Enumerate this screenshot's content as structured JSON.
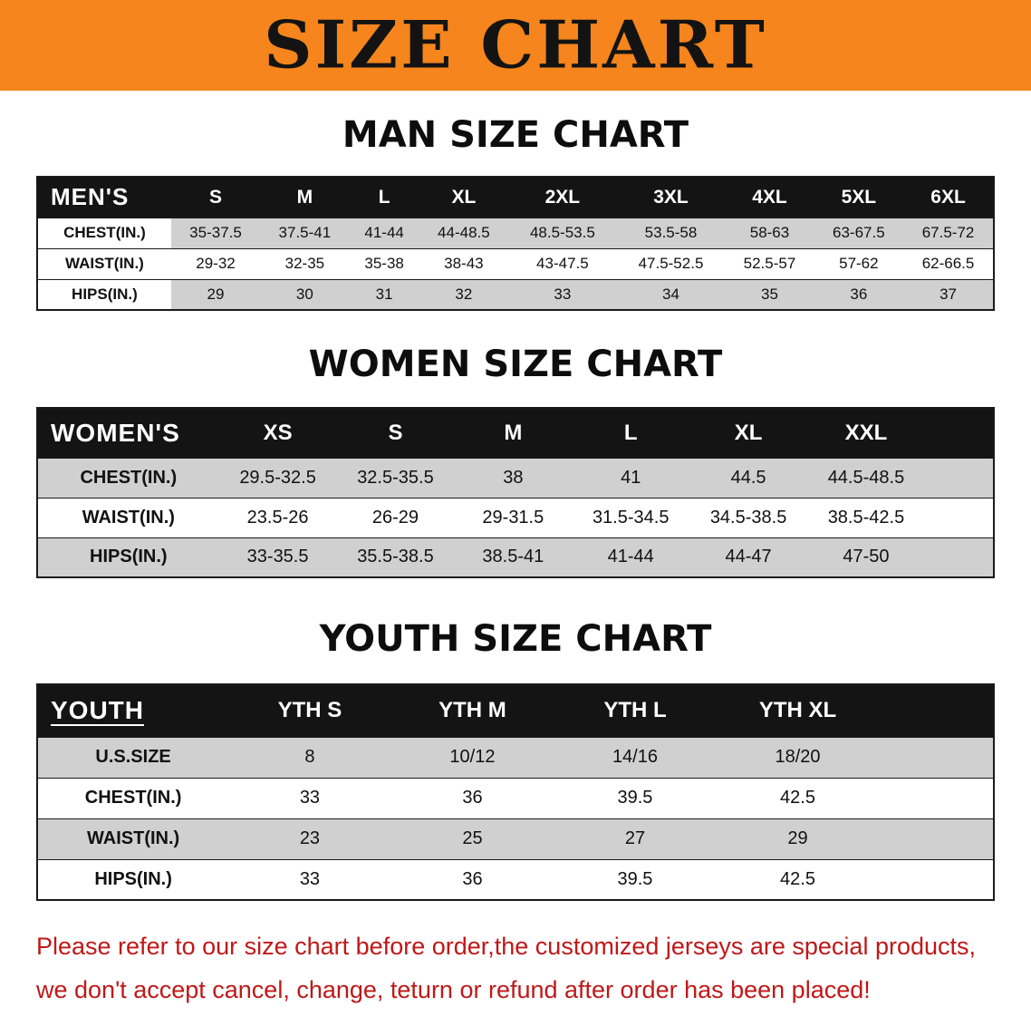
{
  "banner": {
    "title": "SIZE CHART"
  },
  "colors": {
    "banner_bg": "#F5851C",
    "header_bg": "#141414",
    "row_stripe": "#D0D0D0",
    "disclaimer_red": "#C01818",
    "text_black": "#111111"
  },
  "sections": {
    "men": {
      "heading": "MAN SIZE CHART"
    },
    "women": {
      "heading": "WOMEN SIZE CHART"
    },
    "youth": {
      "heading": "YOUTH SIZE CHART"
    }
  },
  "tables": {
    "men": {
      "title": "MEN'S",
      "sizes": [
        "S",
        "M",
        "L",
        "XL",
        "2XL",
        "3XL",
        "4XL",
        "5XL",
        "6XL"
      ],
      "rows": [
        {
          "label": "CHEST(IN.)",
          "values": [
            "35-37.5",
            "37.5-41",
            "41-44",
            "44-48.5",
            "48.5-53.5",
            "53.5-58",
            "58-63",
            "63-67.5",
            "67.5-72"
          ]
        },
        {
          "label": "WAIST(IN.)",
          "values": [
            "29-32",
            "32-35",
            "35-38",
            "38-43",
            "43-47.5",
            "47.5-52.5",
            "52.5-57",
            "57-62",
            "62-66.5"
          ]
        },
        {
          "label": "HIPS(IN.)",
          "values": [
            "29",
            "30",
            "31",
            "32",
            "33",
            "34",
            "35",
            "36",
            "37"
          ]
        }
      ]
    },
    "women": {
      "title": "WOMEN'S",
      "sizes": [
        "XS",
        "S",
        "M",
        "L",
        "XL",
        "XXL"
      ],
      "rows": [
        {
          "label": "CHEST(IN.)",
          "values": [
            "29.5-32.5",
            "32.5-35.5",
            "38",
            "41",
            "44.5",
            "44.5-48.5"
          ]
        },
        {
          "label": "WAIST(IN.)",
          "values": [
            "23.5-26",
            "26-29",
            "29-31.5",
            "31.5-34.5",
            "34.5-38.5",
            "38.5-42.5"
          ]
        },
        {
          "label": "HIPS(IN.)",
          "values": [
            "33-35.5",
            "35.5-38.5",
            "38.5-41",
            "41-44",
            "44-47",
            "47-50"
          ]
        }
      ]
    },
    "youth": {
      "title": "YOUTH",
      "sizes": [
        "YTH S",
        "YTH M",
        "YTH L",
        "YTH XL"
      ],
      "rows": [
        {
          "label": "U.S.SIZE",
          "values": [
            "8",
            "10/12",
            "14/16",
            "18/20"
          ]
        },
        {
          "label": "CHEST(IN.)",
          "values": [
            "33",
            "36",
            "39.5",
            "42.5"
          ]
        },
        {
          "label": "WAIST(IN.)",
          "values": [
            "23",
            "25",
            "27",
            "29"
          ]
        },
        {
          "label": "HIPS(IN.)",
          "values": [
            "33",
            "36",
            "39.5",
            "42.5"
          ]
        }
      ]
    }
  },
  "disclaimer": {
    "line1": "Please refer to our size chart before order,the customized jerseys are special products,",
    "line2": "we don't accept cancel, change, teturn or refund after order has been placed!"
  }
}
